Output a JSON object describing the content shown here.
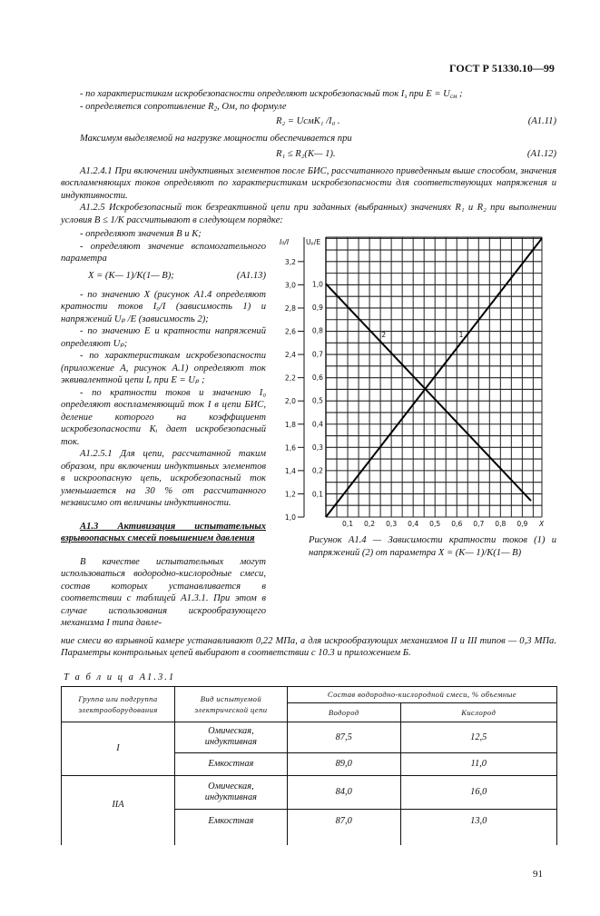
{
  "header": {
    "standard": "ГОСТ Р 51330.10—99"
  },
  "top": {
    "item1": {
      "a": "- по характеристикам искробезопасности определяют искробезопасный ток I",
      "a_sub": "з",
      "b": " при E = U",
      "b_sub": "см",
      "c": " ;"
    },
    "item2": {
      "a": "- определяется сопротивление R",
      "a_sub": "2",
      "b": ", Ом, по формуле"
    },
    "formula_a111": {
      "text": "R₂ = UсмK₁ /I₀ .",
      "number": "(A1.11)"
    },
    "max_power": "Максимум выделяемой на нагрузке мощности обеспечивается при",
    "formula_a112": {
      "text": "R₁ ≤ R₂(K— 1).",
      "number": "(A1.12)"
    },
    "p_a1241": "A1.2.4.1 При включении индуктивных элементов после БИС, рассчитанного приведенным выше способом, значения воспламеняющих токов определяют по характеристикам искробезопасности для соответствующих напряжения и индуктивности.",
    "p_a125": "A1.2.5 Искробезопасный ток безреактивной цепи при заданных (выбранных) значениях R₁ и R₂ при выполнении условия B ≤ 1/K рассчитывают в следующем порядке:"
  },
  "left": {
    "s1": "- определяют значения B и K;",
    "s2": "- определяют значение вспомогательного параметра",
    "formula_a113": {
      "text": "X = (K— 1)/K(1— B);",
      "number": "(A1.13)"
    },
    "s3": "- по значению X (рисунок A1.4 определяют кратности токов I₀/I (зависимость 1) и напряжений Uₚ /E (зависимость 2);",
    "s4": "- по значению E и кратности напряжений определяют Uₚ;",
    "s5": "- по характеристикам искробезопасности (приложение A, рисунок A.1) определяют ток эквивалентной цепи Iₑ при E = Uₚ ;",
    "s6": "- по кратности токов и значению I₀ определяют воспламеняющий ток I в цепи БИС, деление которого на коэффициент искробезопасности Kᵢ дает искробезопасный ток.",
    "p_a1251": "A1.2.5.1 Для цепи, рассчитанной таким образом, при включении индуктивных элементов в искроопасную цепь, искробезопасный ток уменьшается на 30 % от рассчитанного независимо от величины индуктивности.",
    "section_title": "A1.3 Активизация испытательных взрывоопасных смесей повышением давления",
    "p_a13_start": "В качестве испытательных могут использоваться водородно-кислородные смеси, состав которых устанавливается в соответствии с таблицей A1.3.1. При этом в случае использования искрообразующего механизма I типа давле-"
  },
  "bottom_para": "ние смеси во взрывной камере устанавливают 0,22 МПа, а для искрообразующих механизмов II и III типов — 0,3 МПа. Параметры контрольных цепей выбирают в соответствии с 10.3 и приложением Б.",
  "figure_caption": "Рисунок A1.4 — Зависимости кратности токов (1) и напряжений (2) от параметра X = (K— 1)/K(1— B)",
  "chart_data": {
    "type": "line",
    "xlabel": "X",
    "ylabel_left": "I₀/I",
    "ylabel_right": "Uₚ/E",
    "x_ticks": [
      "0,1",
      "0,2",
      "0,3",
      "0,4",
      "0,5",
      "0,6",
      "0,7",
      "0,8",
      "0,9"
    ],
    "x_tick_values": [
      0.1,
      0.2,
      0.3,
      0.4,
      0.5,
      0.6,
      0.7,
      0.8,
      0.9
    ],
    "y_left_ticks": [
      "1,0",
      "1,2",
      "1,4",
      "1,6",
      "1,8",
      "2,0",
      "2,2",
      "2,4",
      "2,6",
      "2,8",
      "3,0",
      "3,2"
    ],
    "y_left_tick_values": [
      1.0,
      1.2,
      1.4,
      1.6,
      1.8,
      2.0,
      2.2,
      2.4,
      2.6,
      2.8,
      3.0,
      3.2
    ],
    "y_right_ticks": [
      "0,1",
      "0,2",
      "0,3",
      "0,4",
      "0,5",
      "0,6",
      "0,7",
      "0,8",
      "0,9",
      "1,0"
    ],
    "y_right_tick_values": [
      0.1,
      0.2,
      0.3,
      0.4,
      0.5,
      0.6,
      0.7,
      0.8,
      0.9,
      1.0
    ],
    "xlim": [
      0,
      0.99
    ],
    "ylim_left": [
      1.0,
      3.41
    ],
    "ylim_right": [
      0,
      1.2
    ],
    "grid": true,
    "series": [
      {
        "name": "1",
        "axis": "left",
        "x": [
          0,
          0.99
        ],
        "y": [
          1.0,
          3.4
        ]
      },
      {
        "name": "2",
        "axis": "right",
        "x": [
          0,
          0.94
        ],
        "y": [
          1.0,
          0.07
        ]
      }
    ]
  },
  "table": {
    "title": "Т а б л и ц а  A1.3.1",
    "headers": {
      "group": "Группа или подгруппа электрооборудования",
      "circuit": "Вид испытуемой электрической цепи",
      "composition": "Состав водородно-кислородной смеси, % объемные",
      "hydrogen": "Водород",
      "oxygen": "Кислород"
    },
    "groups": [
      {
        "group": "I",
        "rows": [
          {
            "circuit": "Омическая, индуктивная",
            "hydrogen": "87,5",
            "oxygen": "12,5"
          },
          {
            "circuit": "Емкостная",
            "hydrogen": "89,0",
            "oxygen": "11,0"
          }
        ]
      },
      {
        "group": "IIA",
        "rows": [
          {
            "circuit": "Омическая, индуктивная",
            "hydrogen": "84,0",
            "oxygen": "16,0"
          },
          {
            "circuit": "Емкостная",
            "hydrogen": "87,0",
            "oxygen": "13,0"
          }
        ]
      }
    ]
  },
  "page_number": "91"
}
